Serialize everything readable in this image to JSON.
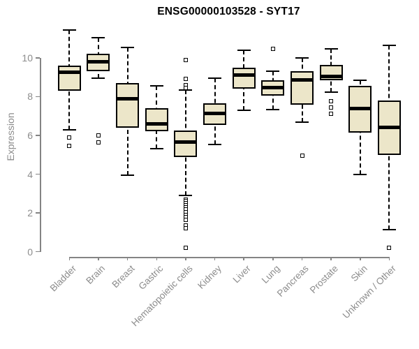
{
  "title": "ENSG00000103528 - SYT17",
  "chart_data": {
    "type": "boxplot",
    "title": "ENSG00000103528 - SYT17",
    "xlabel": "",
    "ylabel": "Expression",
    "y_ticks": [
      0,
      2,
      4,
      6,
      8,
      10
    ],
    "ylim": [
      0,
      11.6
    ],
    "grid": false,
    "legend": "none",
    "categories": [
      "Bladder",
      "Brain",
      "Breast",
      "Gastric",
      "Hematopoietic cells",
      "Kidney",
      "Liver",
      "Lung",
      "Pancreas",
      "Prostate",
      "Skin",
      "Unknown / Other"
    ],
    "series": [
      {
        "category": "Bladder",
        "whisker_low": 6.3,
        "q1": 8.3,
        "median": 9.25,
        "q3": 9.6,
        "whisker_high": 11.45,
        "outliers": [
          5.9,
          5.45
        ]
      },
      {
        "category": "Brain",
        "whisker_low": 8.95,
        "q1": 9.3,
        "median": 9.8,
        "q3": 10.2,
        "whisker_high": 11.05,
        "outliers": [
          6.0,
          5.65
        ]
      },
      {
        "category": "Breast",
        "whisker_low": 3.95,
        "q1": 6.4,
        "median": 7.9,
        "q3": 8.7,
        "whisker_high": 10.55,
        "outliers": []
      },
      {
        "category": "Gastric",
        "whisker_low": 5.3,
        "q1": 6.2,
        "median": 6.6,
        "q3": 7.4,
        "whisker_high": 8.55,
        "outliers": []
      },
      {
        "category": "Hematopoietic cells",
        "whisker_low": 2.9,
        "q1": 4.9,
        "median": 5.65,
        "q3": 6.25,
        "whisker_high": 8.35,
        "outliers": [
          9.9,
          8.9,
          8.6,
          8.45,
          2.7,
          2.6,
          2.5,
          2.4,
          2.3,
          2.2,
          2.05,
          1.9,
          1.8,
          1.65,
          1.35,
          1.2,
          0.2
        ]
      },
      {
        "category": "Kidney",
        "whisker_low": 5.55,
        "q1": 6.55,
        "median": 7.15,
        "q3": 7.65,
        "whisker_high": 8.95,
        "outliers": []
      },
      {
        "category": "Liver",
        "whisker_low": 7.3,
        "q1": 8.4,
        "median": 9.1,
        "q3": 9.5,
        "whisker_high": 10.4,
        "outliers": []
      },
      {
        "category": "Lung",
        "whisker_low": 7.35,
        "q1": 8.05,
        "median": 8.45,
        "q3": 8.85,
        "whisker_high": 9.3,
        "outliers": [
          10.45
        ]
      },
      {
        "category": "Pancreas",
        "whisker_low": 6.7,
        "q1": 7.6,
        "median": 8.85,
        "q3": 9.3,
        "whisker_high": 10.0,
        "outliers": [
          4.95
        ]
      },
      {
        "category": "Prostate",
        "whisker_low": 8.25,
        "q1": 8.85,
        "median": 9.05,
        "q3": 9.65,
        "whisker_high": 10.45,
        "outliers": [
          7.75,
          7.45,
          7.1
        ]
      },
      {
        "category": "Skin",
        "whisker_low": 4.0,
        "q1": 6.15,
        "median": 7.4,
        "q3": 8.55,
        "whisker_high": 8.85,
        "outliers": []
      },
      {
        "category": "Unknown / Other",
        "whisker_low": 1.15,
        "q1": 5.0,
        "median": 6.4,
        "q3": 7.8,
        "whisker_high": 10.65,
        "outliers": [
          0.2
        ]
      }
    ],
    "colors": {
      "box_fill": "#ece6c9",
      "box_border": "#000000",
      "axis": "#848484",
      "tick_text": "#8c8c8c",
      "title_text": "#000000"
    }
  }
}
